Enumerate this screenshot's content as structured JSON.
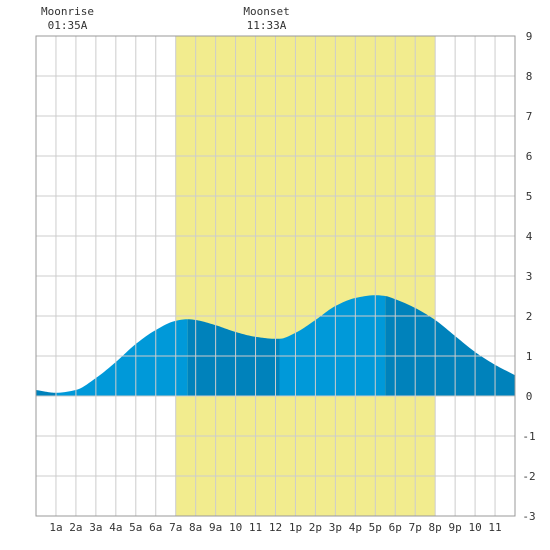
{
  "chart_data": {
    "type": "area",
    "title": "",
    "xlabel": "",
    "ylabel": "",
    "x_unit": "hour of day",
    "xlim": [
      0,
      24
    ],
    "ylim": [
      -3,
      9
    ],
    "grid": true,
    "x_ticks": [
      {
        "x": 1,
        "label": "1a"
      },
      {
        "x": 2,
        "label": "2a"
      },
      {
        "x": 3,
        "label": "3a"
      },
      {
        "x": 4,
        "label": "4a"
      },
      {
        "x": 5,
        "label": "5a"
      },
      {
        "x": 6,
        "label": "6a"
      },
      {
        "x": 7,
        "label": "7a"
      },
      {
        "x": 8,
        "label": "8a"
      },
      {
        "x": 9,
        "label": "9a"
      },
      {
        "x": 10,
        "label": "10"
      },
      {
        "x": 11,
        "label": "11"
      },
      {
        "x": 12,
        "label": "12"
      },
      {
        "x": 13,
        "label": "1p"
      },
      {
        "x": 14,
        "label": "2p"
      },
      {
        "x": 15,
        "label": "3p"
      },
      {
        "x": 16,
        "label": "4p"
      },
      {
        "x": 17,
        "label": "5p"
      },
      {
        "x": 18,
        "label": "6p"
      },
      {
        "x": 19,
        "label": "7p"
      },
      {
        "x": 20,
        "label": "8p"
      },
      {
        "x": 21,
        "label": "9p"
      },
      {
        "x": 22,
        "label": "10"
      },
      {
        "x": 23,
        "label": "11"
      }
    ],
    "y_ticks": [
      {
        "y": -3,
        "label": "-3"
      },
      {
        "y": -2,
        "label": "-2"
      },
      {
        "y": -1,
        "label": "-1"
      },
      {
        "y": 0,
        "label": "0"
      },
      {
        "y": 1,
        "label": "1"
      },
      {
        "y": 2,
        "label": "2"
      },
      {
        "y": 3,
        "label": "3"
      },
      {
        "y": 4,
        "label": "4"
      },
      {
        "y": 5,
        "label": "5"
      },
      {
        "y": 6,
        "label": "6"
      },
      {
        "y": 7,
        "label": "7"
      },
      {
        "y": 8,
        "label": "8"
      },
      {
        "y": 9,
        "label": "9"
      }
    ],
    "daylight": {
      "start": 7.0,
      "end": 20.0
    },
    "series": [
      {
        "x": [
          0,
          1,
          2,
          3,
          4,
          5,
          6,
          7,
          7.6,
          8,
          9,
          10,
          11,
          12,
          12.2,
          13,
          14,
          15,
          16,
          17,
          17.5,
          18,
          19,
          20,
          21,
          22,
          23,
          24
        ],
        "values": [
          0.15,
          0.08,
          0.15,
          0.45,
          0.85,
          1.3,
          1.65,
          1.88,
          1.92,
          1.9,
          1.77,
          1.6,
          1.48,
          1.43,
          1.43,
          1.58,
          1.9,
          2.25,
          2.45,
          2.52,
          2.5,
          2.42,
          2.2,
          1.9,
          1.5,
          1.1,
          0.78,
          0.52
        ]
      }
    ],
    "extremes": [
      {
        "x": 1.0,
        "value": 0.08,
        "kind": "low"
      },
      {
        "x": 7.6,
        "value": 1.92,
        "kind": "high"
      },
      {
        "x": 12.2,
        "value": 1.43,
        "kind": "low"
      },
      {
        "x": 17.5,
        "value": 2.52,
        "kind": "high"
      }
    ],
    "annotations": [
      {
        "label": "Moonrise",
        "time": "01:35A",
        "x": 1.58
      },
      {
        "label": "Moonset",
        "time": "11:33A",
        "x": 11.55
      }
    ]
  },
  "colors": {
    "daylight": "#f2ec8e",
    "tide_dark": "#0082bb",
    "tide_light": "#0099d9",
    "grid": "#cccccc",
    "frame": "#999999"
  }
}
